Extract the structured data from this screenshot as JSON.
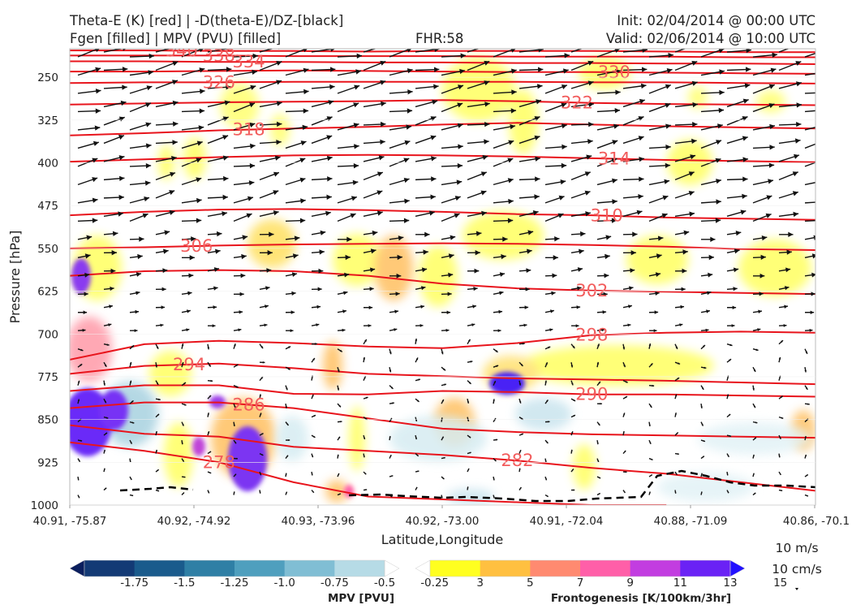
{
  "header": {
    "title_line1": "Theta-E (K) [red] | -D(theta-E)/DZ-[black]",
    "title_line2": "Fgen [filled] | MPV (PVU) [filled]",
    "fhr": "FHR:58",
    "init": "Init: 02/04/2014 @ 00:00 UTC",
    "valid": "Valid: 02/06/2014 @ 10:00 UTC"
  },
  "chart_data": {
    "type": "cross-section",
    "xlabel": "Latitude,Longitude",
    "ylabel": "Pressure [hPa]",
    "x_tick_labels": [
      "40.91, -75.87",
      "40.92, -74.92",
      "40.93, -73.96",
      "40.92, -73.00",
      "40.91, -72.04",
      "40.88, -71.09",
      "40.86, -70.1"
    ],
    "y_ticks": [
      250,
      325,
      400,
      475,
      550,
      625,
      700,
      775,
      850,
      925,
      1000
    ],
    "y_range": [
      1000,
      200
    ],
    "theta_e_contours": [
      {
        "label": "340",
        "x": [
          0,
          0.1,
          0.2,
          0.3,
          0.4,
          0.5,
          0.6,
          0.7,
          0.8,
          0.9,
          1.0
        ],
        "p": [
          203,
          203,
          204,
          204,
          205,
          204,
          204,
          204,
          205,
          206,
          206
        ]
      },
      {
        "label": "338",
        "x": [
          0,
          0.1,
          0.2,
          0.3,
          0.4,
          0.5,
          0.6,
          0.7,
          0.8,
          0.9,
          1.0
        ],
        "p": [
          212,
          212,
          212,
          213,
          213,
          213,
          214,
          214,
          214,
          215,
          215
        ]
      },
      {
        "label": "334",
        "x": [
          0,
          0.1,
          0.2,
          0.3,
          0.4,
          0.5,
          0.6,
          0.7,
          0.8,
          0.9,
          1.0
        ],
        "p": [
          222,
          222,
          223,
          223,
          224,
          224,
          225,
          225,
          226,
          226,
          227
        ]
      },
      {
        "label": "330",
        "x": [
          0,
          0.1,
          0.2,
          0.3,
          0.4,
          0.5,
          0.6,
          0.7,
          0.8,
          0.9,
          1.0
        ],
        "p": [
          240,
          240,
          239,
          238,
          239,
          240,
          241,
          241,
          242,
          243,
          244
        ]
      },
      {
        "label": "326",
        "x": [
          0,
          0.1,
          0.2,
          0.3,
          0.4,
          0.5,
          0.6,
          0.7,
          0.8,
          0.9,
          1.0
        ],
        "p": [
          260,
          259,
          259,
          258,
          258,
          258,
          258,
          259,
          259,
          260,
          261
        ]
      },
      {
        "label": "322",
        "x": [
          0,
          0.1,
          0.2,
          0.3,
          0.4,
          0.5,
          0.6,
          0.7,
          0.8,
          0.9,
          1.0
        ],
        "p": [
          298,
          296,
          294,
          293,
          292,
          290,
          292,
          295,
          297,
          298,
          299
        ]
      },
      {
        "label": "318",
        "x": [
          0,
          0.1,
          0.2,
          0.3,
          0.4,
          0.5,
          0.6,
          0.7,
          0.8,
          0.9,
          1.0
        ],
        "p": [
          352,
          348,
          343,
          340,
          337,
          333,
          330,
          333,
          336,
          338,
          340
        ]
      },
      {
        "label": "314",
        "x": [
          0,
          0.1,
          0.2,
          0.3,
          0.4,
          0.5,
          0.6,
          0.7,
          0.8,
          0.9,
          1.0
        ],
        "p": [
          398,
          394,
          390,
          387,
          386,
          387,
          389,
          392,
          395,
          397,
          399
        ]
      },
      {
        "label": "310",
        "x": [
          0,
          0.1,
          0.2,
          0.3,
          0.4,
          0.5,
          0.6,
          0.7,
          0.8,
          0.9,
          1.0
        ],
        "p": [
          492,
          486,
          482,
          481,
          483,
          486,
          490,
          492,
          496,
          498,
          500
        ]
      },
      {
        "label": "306",
        "x": [
          0,
          0.1,
          0.2,
          0.3,
          0.4,
          0.5,
          0.6,
          0.7,
          0.8,
          0.9,
          1.0
        ],
        "p": [
          550,
          548,
          545,
          543,
          542,
          541,
          542,
          544,
          547,
          551,
          553
        ]
      },
      {
        "label": "302",
        "x": [
          0,
          0.1,
          0.2,
          0.3,
          0.4,
          0.5,
          0.6,
          0.7,
          0.8,
          0.9,
          1.0
        ],
        "p": [
          598,
          590,
          588,
          590,
          598,
          612,
          620,
          624,
          626,
          628,
          630
        ]
      },
      {
        "label": "298",
        "x": [
          0,
          0.1,
          0.2,
          0.3,
          0.4,
          0.5,
          0.6,
          0.7,
          0.8,
          0.9,
          1.0
        ],
        "p": [
          745,
          718,
          712,
          716,
          722,
          725,
          716,
          702,
          698,
          696,
          698
        ]
      },
      {
        "label": "294",
        "x": [
          0,
          0.1,
          0.2,
          0.3,
          0.4,
          0.5,
          0.6,
          0.7,
          0.8,
          0.9,
          1.0
        ],
        "p": [
          770,
          756,
          752,
          760,
          770,
          774,
          778,
          780,
          782,
          785,
          788
        ]
      },
      {
        "label": "290",
        "x": [
          0,
          0.1,
          0.2,
          0.3,
          0.4,
          0.5,
          0.6,
          0.7,
          0.8,
          0.9,
          1.0
        ],
        "p": [
          800,
          790,
          790,
          805,
          806,
          800,
          802,
          806,
          806,
          808,
          810
        ]
      },
      {
        "label": "286",
        "x": [
          0,
          0.1,
          0.2,
          0.3,
          0.4,
          0.5,
          0.6,
          0.7,
          0.8,
          0.9,
          1.0
        ],
        "p": [
          830,
          820,
          820,
          830,
          848,
          866,
          872,
          876,
          878,
          880,
          882
        ]
      },
      {
        "label": "282",
        "x": [
          0,
          0.1,
          0.2,
          0.3,
          0.4,
          0.5,
          0.6,
          0.7,
          0.8,
          0.9,
          1.0
        ],
        "p": [
          860,
          875,
          880,
          898,
          905,
          912,
          922,
          935,
          945,
          960,
          975
        ]
      },
      {
        "label": "278",
        "x": [
          0,
          0.1,
          0.2,
          0.3,
          0.4,
          0.5,
          0.6,
          0.7,
          0.8
        ],
        "p": [
          890,
          905,
          925,
          960,
          985,
          990,
          995,
          1000,
          1000
        ]
      }
    ],
    "mpv_colorbar": {
      "title": "MPV [PVU]",
      "ticks": [
        "-1.75",
        "-1.5",
        "-1.25",
        "-1.0",
        "-0.75",
        "-0.5",
        "-0.25"
      ],
      "colors": [
        "#0b1f5e",
        "#133a75",
        "#1a5b8c",
        "#2f7fa5",
        "#4f9fbe",
        "#80bed4",
        "#b6dbe6",
        "#ffffff"
      ]
    },
    "fgen_colorbar": {
      "title": "Frontogenesis [K/100km/3hr]",
      "ticks": [
        "3",
        "5",
        "7",
        "9",
        "11",
        "13",
        "15"
      ],
      "colors": [
        "#ffffff",
        "#ffff20",
        "#ffc040",
        "#ff8a70",
        "#ff5fa8",
        "#c23de0",
        "#6a22f5",
        "#2211ff"
      ]
    },
    "reference_vectors": [
      "10 m/s",
      "10 cm/s"
    ]
  }
}
